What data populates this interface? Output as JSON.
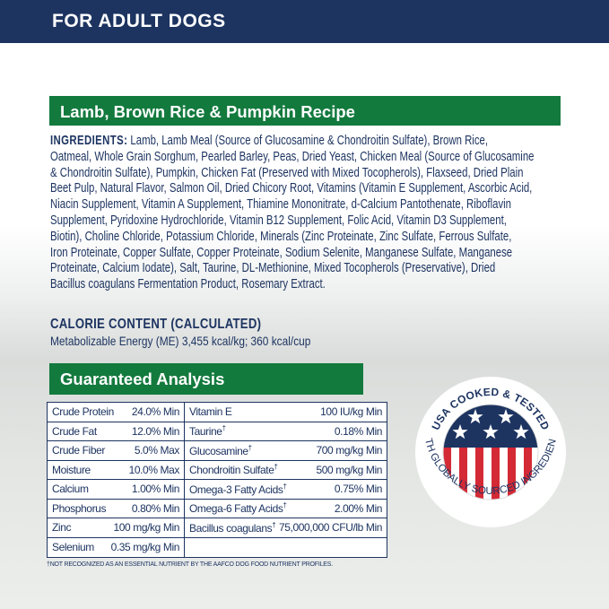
{
  "header": {
    "title": "FOR ADULT DOGS"
  },
  "recipe": {
    "title": "Lamb, Brown Rice & Pumpkin Recipe"
  },
  "ingredients": {
    "label": "INGREDIENTS:",
    "lines": [
      " Lamb, Lamb Meal (Source of Glucosamine & Chondroitin Sulfate), Brown Rice,",
      "Oatmeal, Whole Grain Sorghum, Pearled Barley, Peas, Dried Yeast, Chicken Meal (Source of Glucosamine",
      "& Chondroitin Sulfate), Pumpkin, Chicken Fat (Preserved with Mixed Tocopherols), Flaxseed, Dried Plain",
      "Beet Pulp, Natural Flavor, Salmon Oil, Dried Chicory Root, Vitamins (Vitamin E Supplement, Ascorbic Acid,",
      "Niacin Supplement, Vitamin A Supplement, Thiamine Mononitrate, d-Calcium Pantothenate, Riboflavin",
      "Supplement, Pyridoxine Hydrochloride, Vitamin B12 Supplement, Folic Acid, Vitamin D3 Supplement,",
      "Biotin), Choline Chloride, Potassium Chloride, Minerals (Zinc Proteinate, Zinc Sulfate, Ferrous Sulfate,",
      "Iron Proteinate, Copper Sulfate, Copper Proteinate, Sodium Selenite, Manganese Sulfate, Manganese",
      "Proteinate, Calcium Iodate), Salt, Taurine, DL-Methionine, Mixed Tocopherols (Preservative), Dried",
      "Bacillus coagulans Fermentation Product, Rosemary Extract."
    ]
  },
  "calorie": {
    "heading": "CALORIE CONTENT (CALCULATED)",
    "value": "Metabolizable Energy (ME) 3,455 kcal/kg; 360 kcal/cup"
  },
  "analysis": {
    "title": "Guaranteed Analysis",
    "left": [
      [
        "Crude Protein",
        "24.0% Min",
        ""
      ],
      [
        "Crude Fat",
        "12.0% Min",
        ""
      ],
      [
        "Crude Fiber",
        "5.0% Max",
        ""
      ],
      [
        "Moisture",
        "10.0% Max",
        ""
      ],
      [
        "Calcium",
        "1.00% Min",
        ""
      ],
      [
        "Phosphorus",
        "0.80% Min",
        ""
      ],
      [
        "Zinc",
        "100 mg/kg Min",
        ""
      ],
      [
        "Selenium",
        "0.35 mg/kg Min",
        ""
      ]
    ],
    "right": [
      [
        "Vitamin E",
        "100 IU/kg Min",
        ""
      ],
      [
        "Taurine",
        "0.18% Min",
        "†"
      ],
      [
        "Glucosamine",
        "700 mg/kg Min",
        "†"
      ],
      [
        "Chondroitin Sulfate",
        "500 mg/kg Min",
        "†"
      ],
      [
        "Omega-3 Fatty Acids",
        "0.75% Min",
        "†"
      ],
      [
        "Omega-6 Fatty Acids",
        "2.00% Min",
        "†"
      ],
      [
        "Bacillus coagulans",
        "75,000,000 CFU/lb Min",
        "†"
      ]
    ],
    "footnote": "†NOT RECOGNIZED AS AN ESSENTIAL NUTRIENT BY THE AAFCO DOG FOOD NUTRIENT PROFILES."
  },
  "badge": {
    "top_text": "USA COOKED & TESTED",
    "bottom_text": "WITH GLOBALLY SOURCED INGREDIENTS",
    "colors": {
      "navy": "#1d3461",
      "red": "#d42a35"
    }
  },
  "colors": {
    "navy": "#1d3461",
    "green": "#137a3e"
  }
}
